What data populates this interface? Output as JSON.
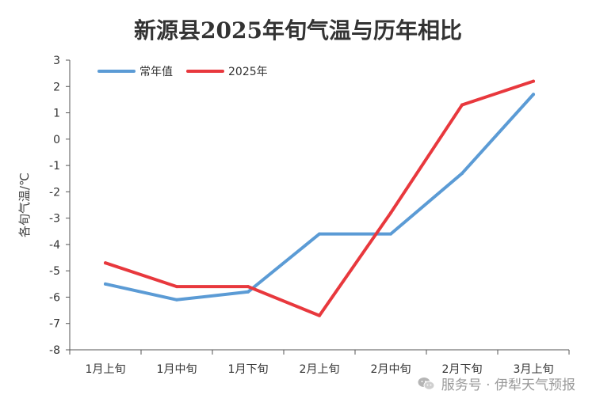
{
  "chart_data": {
    "type": "line",
    "title": "新源县2025年旬气温与历年相比",
    "xlabel": "",
    "ylabel": "各旬气温/℃",
    "categories": [
      "1月上旬",
      "1月中旬",
      "1月下旬",
      "2月上旬",
      "2月中旬",
      "2月下旬",
      "3月上旬"
    ],
    "series": [
      {
        "name": "常年值",
        "color": "#5b9bd5",
        "values": [
          -5.5,
          -6.1,
          -5.8,
          -3.6,
          -3.6,
          -1.3,
          1.7
        ]
      },
      {
        "name": "2025年",
        "color": "#e8383d",
        "values": [
          -4.7,
          -5.6,
          -5.6,
          -6.7,
          -2.8,
          1.3,
          2.2
        ]
      }
    ],
    "ylim": [
      -8,
      3
    ],
    "yticks": [
      3,
      2,
      1,
      0,
      -1,
      -2,
      -3,
      -4,
      -5,
      -6,
      -7,
      -8
    ],
    "grid": false,
    "legend_position": "top-left"
  },
  "watermark": {
    "icon": "wechat-icon",
    "text": "服务号 · 伊犁天气预报"
  }
}
